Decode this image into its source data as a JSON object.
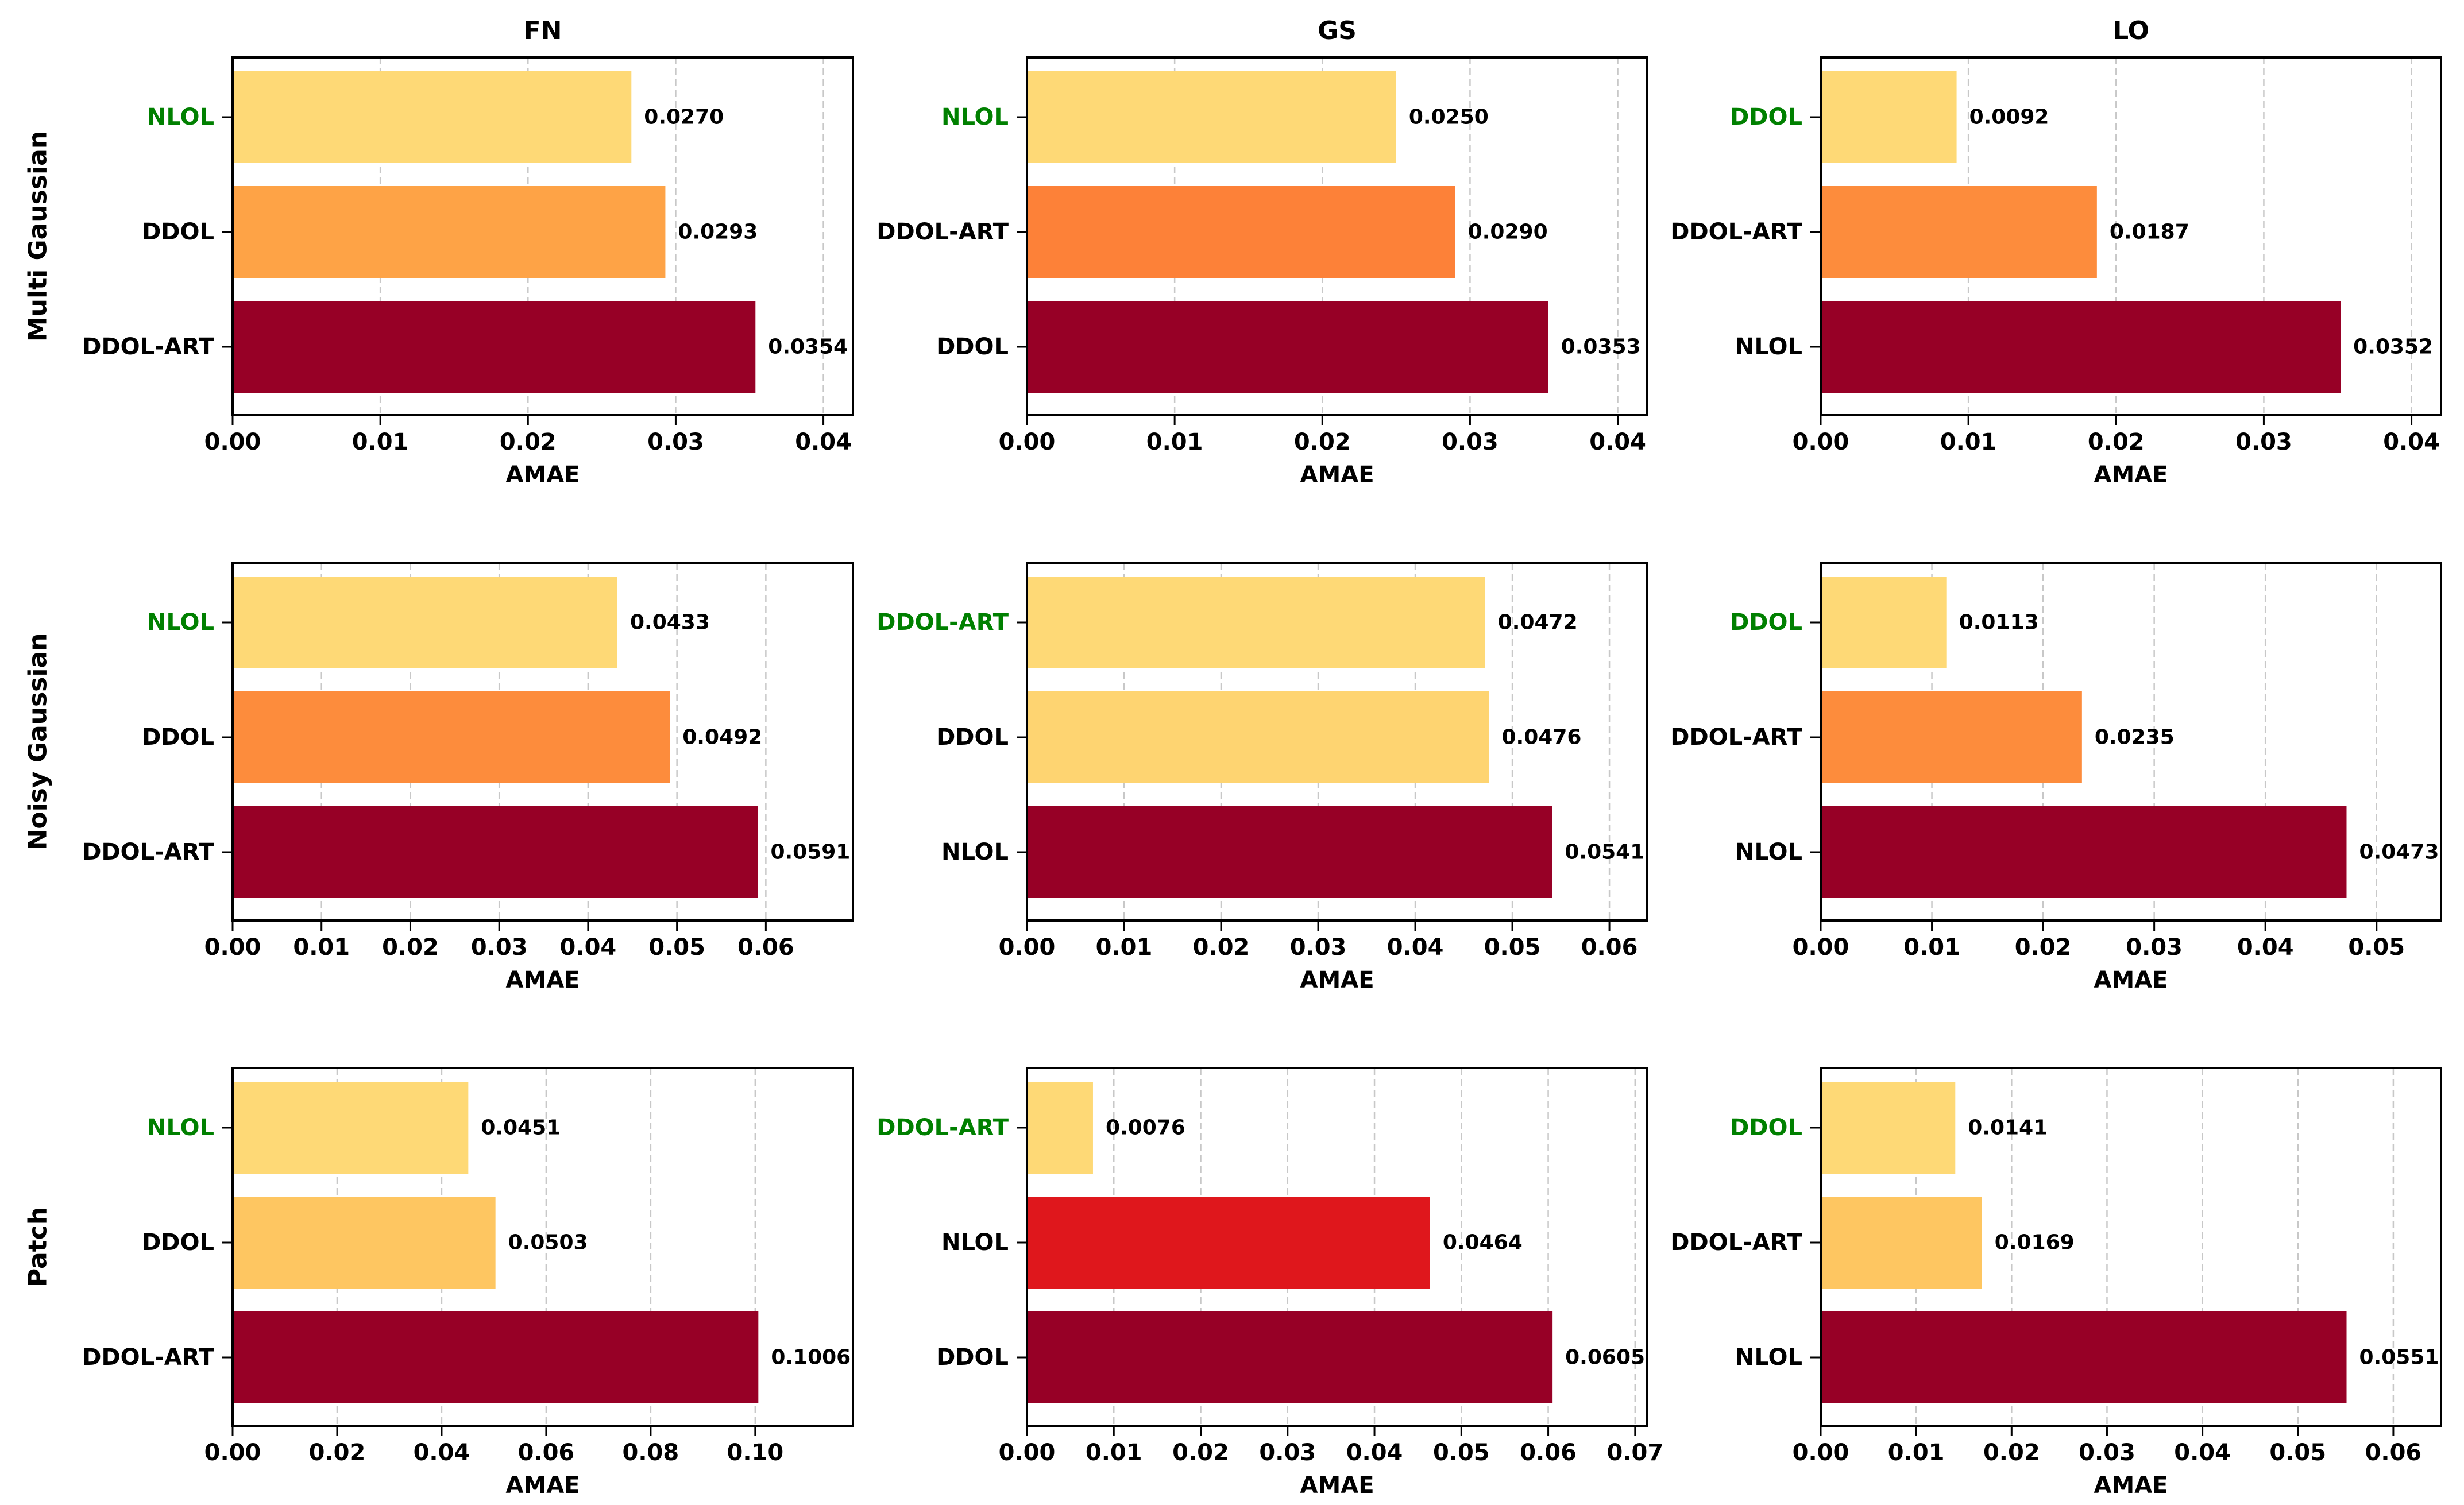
{
  "chart_data": {
    "type": "bar",
    "orientation": "horizontal",
    "value_axis_label": "AMAE",
    "columns": [
      "FN",
      "GS",
      "LO"
    ],
    "rows": [
      "Multi Gaussian",
      "Noisy Gaussian",
      "Patch"
    ],
    "best_label_color": "#008000",
    "default_label_color": "#000000",
    "panels": [
      {
        "row": "Multi Gaussian",
        "col": "FN",
        "xlim": [
          0,
          0.042
        ],
        "xticks": [
          "0.00",
          "0.01",
          "0.02",
          "0.03",
          "0.04"
        ],
        "xtick_values": [
          0,
          0.01,
          0.02,
          0.03,
          0.04
        ],
        "bars": [
          {
            "label": "NLOL",
            "value": 0.027,
            "value_text": "0.0270",
            "color": "#fed976",
            "best": true
          },
          {
            "label": "DDOL",
            "value": 0.0293,
            "value_text": "0.0293",
            "color": "#fea346",
            "best": false
          },
          {
            "label": "DDOL-ART",
            "value": 0.0354,
            "value_text": "0.0354",
            "color": "#970026",
            "best": false
          }
        ]
      },
      {
        "row": "Multi Gaussian",
        "col": "GS",
        "xlim": [
          0,
          0.042
        ],
        "xticks": [
          "0.00",
          "0.01",
          "0.02",
          "0.03",
          "0.04"
        ],
        "xtick_values": [
          0,
          0.01,
          0.02,
          0.03,
          0.04
        ],
        "bars": [
          {
            "label": "NLOL",
            "value": 0.025,
            "value_text": "0.0250",
            "color": "#fed976",
            "best": true
          },
          {
            "label": "DDOL-ART",
            "value": 0.029,
            "value_text": "0.0290",
            "color": "#fd8138",
            "best": false
          },
          {
            "label": "DDOL",
            "value": 0.0353,
            "value_text": "0.0353",
            "color": "#970026",
            "best": false
          }
        ]
      },
      {
        "row": "Multi Gaussian",
        "col": "LO",
        "xlim": [
          0,
          0.042
        ],
        "xticks": [
          "0.00",
          "0.01",
          "0.02",
          "0.03",
          "0.04"
        ],
        "xtick_values": [
          0,
          0.01,
          0.02,
          0.03,
          0.04
        ],
        "bars": [
          {
            "label": "DDOL",
            "value": 0.0092,
            "value_text": "0.0092",
            "color": "#fed976",
            "best": true
          },
          {
            "label": "DDOL-ART",
            "value": 0.0187,
            "value_text": "0.0187",
            "color": "#fd8c3c",
            "best": false
          },
          {
            "label": "NLOL",
            "value": 0.0352,
            "value_text": "0.0352",
            "color": "#970026",
            "best": false
          }
        ]
      },
      {
        "row": "Noisy Gaussian",
        "col": "FN",
        "xlim": [
          0,
          0.0698
        ],
        "xticks": [
          "0.00",
          "0.01",
          "0.02",
          "0.03",
          "0.04",
          "0.05",
          "0.06"
        ],
        "xtick_values": [
          0,
          0.01,
          0.02,
          0.03,
          0.04,
          0.05,
          0.06
        ],
        "bars": [
          {
            "label": "NLOL",
            "value": 0.0433,
            "value_text": "0.0433",
            "color": "#fed976",
            "best": true
          },
          {
            "label": "DDOL",
            "value": 0.0492,
            "value_text": "0.0492",
            "color": "#fd8c3c",
            "best": false
          },
          {
            "label": "DDOL-ART",
            "value": 0.0591,
            "value_text": "0.0591",
            "color": "#970026",
            "best": false
          }
        ]
      },
      {
        "row": "Noisy Gaussian",
        "col": "GS",
        "xlim": [
          0,
          0.0639
        ],
        "xticks": [
          "0.00",
          "0.01",
          "0.02",
          "0.03",
          "0.04",
          "0.05",
          "0.06"
        ],
        "xtick_values": [
          0,
          0.01,
          0.02,
          0.03,
          0.04,
          0.05,
          0.06
        ],
        "bars": [
          {
            "label": "DDOL-ART",
            "value": 0.0472,
            "value_text": "0.0472",
            "color": "#fed976",
            "best": true
          },
          {
            "label": "DDOL",
            "value": 0.0476,
            "value_text": "0.0476",
            "color": "#fed471",
            "best": false
          },
          {
            "label": "NLOL",
            "value": 0.0541,
            "value_text": "0.0541",
            "color": "#970026",
            "best": false
          }
        ]
      },
      {
        "row": "Noisy Gaussian",
        "col": "LO",
        "xlim": [
          0,
          0.0558
        ],
        "xticks": [
          "0.00",
          "0.01",
          "0.02",
          "0.03",
          "0.04",
          "0.05"
        ],
        "xtick_values": [
          0,
          0.01,
          0.02,
          0.03,
          0.04,
          0.05
        ],
        "bars": [
          {
            "label": "DDOL",
            "value": 0.0113,
            "value_text": "0.0113",
            "color": "#fed976",
            "best": true
          },
          {
            "label": "DDOL-ART",
            "value": 0.0235,
            "value_text": "0.0235",
            "color": "#fd8c3c",
            "best": false
          },
          {
            "label": "NLOL",
            "value": 0.0473,
            "value_text": "0.0473",
            "color": "#970026",
            "best": false
          }
        ]
      },
      {
        "row": "Patch",
        "col": "FN",
        "xlim": [
          0,
          0.1187
        ],
        "xticks": [
          "0.00",
          "0.02",
          "0.04",
          "0.06",
          "0.08",
          "0.10"
        ],
        "xtick_values": [
          0,
          0.02,
          0.04,
          0.06,
          0.08,
          0.1
        ],
        "bars": [
          {
            "label": "NLOL",
            "value": 0.0451,
            "value_text": "0.0451",
            "color": "#fed976",
            "best": true
          },
          {
            "label": "DDOL",
            "value": 0.0503,
            "value_text": "0.0503",
            "color": "#fec661",
            "best": false
          },
          {
            "label": "DDOL-ART",
            "value": 0.1006,
            "value_text": "0.1006",
            "color": "#970026",
            "best": false
          }
        ]
      },
      {
        "row": "Patch",
        "col": "GS",
        "xlim": [
          0,
          0.0714
        ],
        "xticks": [
          "0.00",
          "0.01",
          "0.02",
          "0.03",
          "0.04",
          "0.05",
          "0.06",
          "0.07"
        ],
        "xtick_values": [
          0,
          0.01,
          0.02,
          0.03,
          0.04,
          0.05,
          0.06,
          0.07
        ],
        "bars": [
          {
            "label": "DDOL-ART",
            "value": 0.0076,
            "value_text": "0.0076",
            "color": "#fed976",
            "best": true
          },
          {
            "label": "NLOL",
            "value": 0.0464,
            "value_text": "0.0464",
            "color": "#df171c",
            "best": false
          },
          {
            "label": "DDOL",
            "value": 0.0605,
            "value_text": "0.0605",
            "color": "#970026",
            "best": false
          }
        ]
      },
      {
        "row": "Patch",
        "col": "LO",
        "xlim": [
          0,
          0.065
        ],
        "xticks": [
          "0.00",
          "0.01",
          "0.02",
          "0.03",
          "0.04",
          "0.05",
          "0.06"
        ],
        "xtick_values": [
          0,
          0.01,
          0.02,
          0.03,
          0.04,
          0.05,
          0.06
        ],
        "bars": [
          {
            "label": "DDOL",
            "value": 0.0141,
            "value_text": "0.0141",
            "color": "#fed976",
            "best": true
          },
          {
            "label": "DDOL-ART",
            "value": 0.0169,
            "value_text": "0.0169",
            "color": "#fec661",
            "best": false
          },
          {
            "label": "NLOL",
            "value": 0.0551,
            "value_text": "0.0551",
            "color": "#970026",
            "best": false
          }
        ]
      }
    ]
  }
}
